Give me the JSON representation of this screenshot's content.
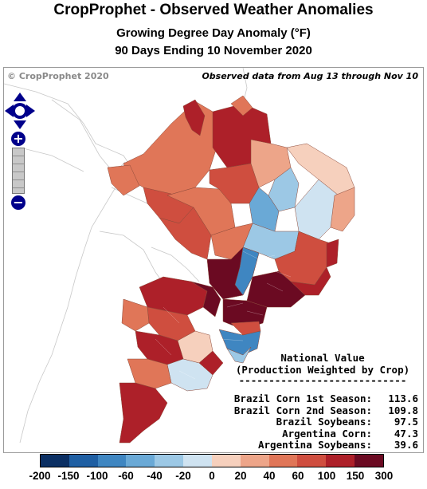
{
  "header": {
    "title": "CropProphet - Observed Weather Anomalies",
    "subtitle1": "Growing Degree Day Anomaly (°F)",
    "subtitle2": "90 Days Ending 10 November 2020"
  },
  "map": {
    "copyright": "© CropProphet 2020",
    "observed_note": "Observed data from Aug 13 through Nov 10",
    "controls": {
      "pan_icon": "pan-arrows-icon",
      "zoom_in": "+",
      "zoom_out": "−"
    }
  },
  "national_value": {
    "heading1": "National Value",
    "heading2": "(Production Weighted by Crop)",
    "rule": "----------------------------",
    "rows": [
      {
        "label": "Brazil Corn 1st Season:",
        "value": "113.6"
      },
      {
        "label": "Brazil Corn 2nd Season:",
        "value": "109.8"
      },
      {
        "label": "Brazil Soybeans:",
        "value": "97.5"
      },
      {
        "label": "Argentina Corn:",
        "value": "47.3"
      },
      {
        "label": "Argentina Soybeans:",
        "value": "39.6"
      }
    ]
  },
  "legend": {
    "colors": [
      "#0b2f63",
      "#1f5fa3",
      "#3f86c1",
      "#6aa9d6",
      "#9cc8e5",
      "#cfe3f1",
      "#f6d0bd",
      "#eda589",
      "#e07658",
      "#cf4e3f",
      "#ad2029",
      "#6b0a22"
    ],
    "ticks": [
      "-200",
      "-150",
      "-100",
      "-60",
      "-40",
      "-20",
      "0",
      "20",
      "40",
      "60",
      "100",
      "150",
      "300"
    ]
  }
}
